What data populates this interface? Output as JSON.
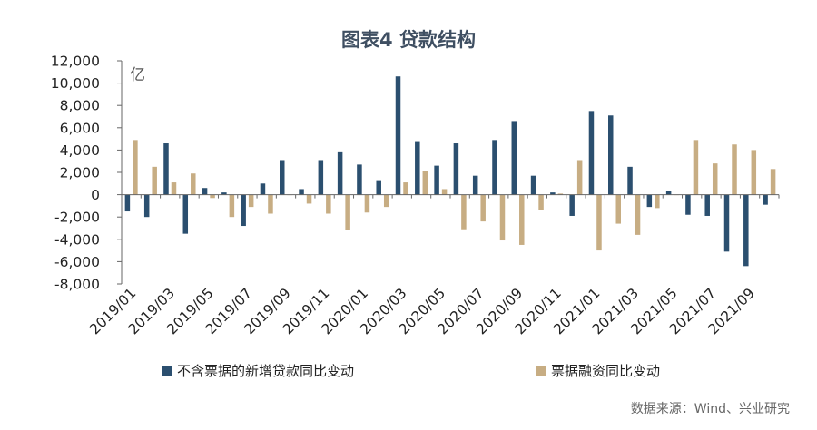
{
  "title": "图表4  贷款结构",
  "source": "数据来源：Wind、兴业研究",
  "colors": {
    "series1": "#2b4f6f",
    "series2": "#c7ad83",
    "axis": "#666666"
  },
  "chart_data": {
    "type": "bar",
    "title": "图表4  贷款结构",
    "unit": "亿",
    "ylim": [
      -8000,
      12000
    ],
    "yticks": [
      "12,000",
      "10,000",
      "8,000",
      "6,000",
      "4,000",
      "2,000",
      "0",
      "-2,000",
      "-4,000",
      "-6,000",
      "-8,000"
    ],
    "ytick_values": [
      12000,
      10000,
      8000,
      6000,
      4000,
      2000,
      0,
      -2000,
      -4000,
      -6000,
      -8000
    ],
    "grid": false,
    "legend_position": "bottom",
    "categories": [
      "2019/01",
      "2019/02",
      "2019/03",
      "2019/04",
      "2019/05",
      "2019/06",
      "2019/07",
      "2019/08",
      "2019/09",
      "2019/10",
      "2019/11",
      "2019/12",
      "2020/01",
      "2020/02",
      "2020/03",
      "2020/04",
      "2020/05",
      "2020/06",
      "2020/07",
      "2020/08",
      "2020/09",
      "2020/10",
      "2020/11",
      "2020/12",
      "2021/01",
      "2021/02",
      "2021/03",
      "2021/04",
      "2021/05",
      "2021/06",
      "2021/07",
      "2021/08",
      "2021/09",
      "2021/10"
    ],
    "x_tick_labels": [
      "2019/01",
      "2019/03",
      "2019/05",
      "2019/07",
      "2019/09",
      "2019/11",
      "2020/01",
      "2020/03",
      "2020/05",
      "2020/07",
      "2020/09",
      "2020/11",
      "2021/01",
      "2021/03",
      "2021/05",
      "2021/07",
      "2021/09"
    ],
    "series": [
      {
        "name": "不含票据的新增贷款同比变动",
        "values": [
          -1500,
          -2000,
          4600,
          -3500,
          600,
          200,
          -2800,
          1000,
          3100,
          500,
          3100,
          3800,
          2700,
          1300,
          10600,
          4800,
          2600,
          4600,
          1700,
          4900,
          6600,
          1700,
          200,
          -1900,
          7500,
          7100,
          2500,
          -1100,
          300,
          -1800,
          -1900,
          -5100,
          -6400,
          -900
        ]
      },
      {
        "name": "票据融资同比变动",
        "values": [
          4900,
          2500,
          1100,
          1900,
          -300,
          -2000,
          -1100,
          -1700,
          0,
          -800,
          -1700,
          -3200,
          -1600,
          -1100,
          1100,
          2100,
          500,
          -3100,
          -2400,
          -4100,
          -4500,
          -1400,
          100,
          3100,
          -5000,
          -2600,
          -3600,
          -1200,
          0,
          4900,
          2800,
          4500,
          4000,
          2300
        ]
      }
    ]
  }
}
